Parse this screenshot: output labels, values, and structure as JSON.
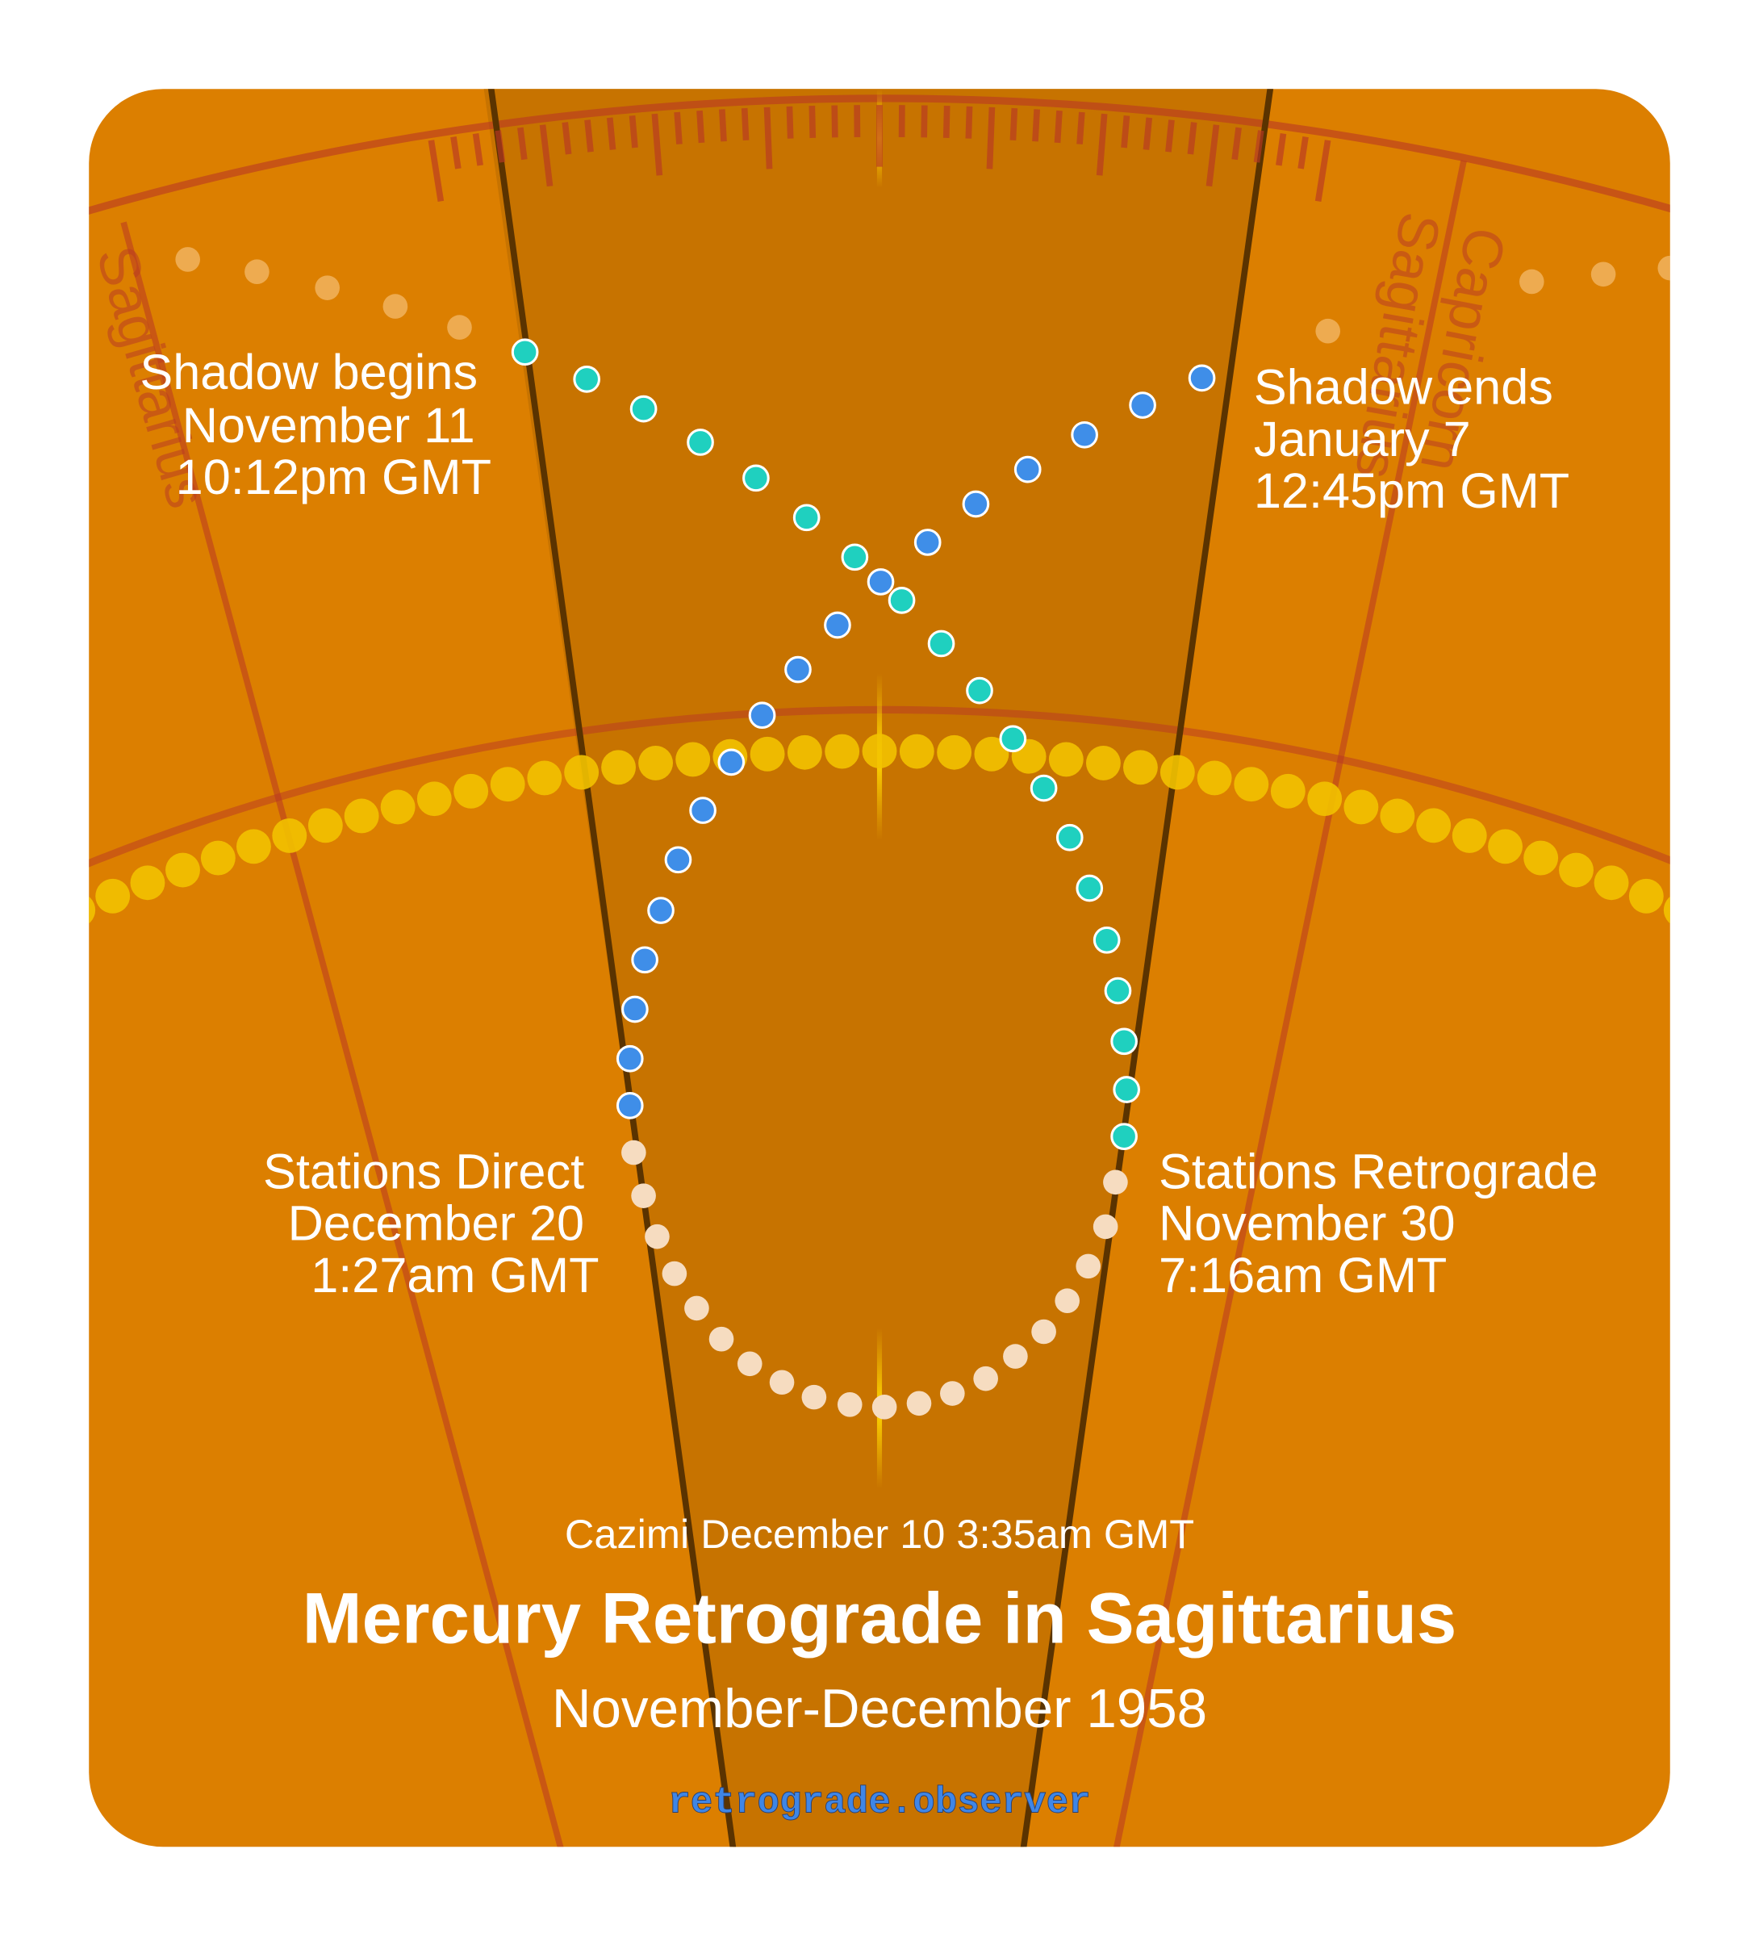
{
  "zodiac_labels": [
    "Sagittarius",
    "Capricorn",
    "Sagittarius"
  ],
  "annotations": {
    "shadow_begins": [
      "Shadow begins",
      "November 11",
      "10:12pm GMT"
    ],
    "shadow_ends": [
      "Shadow ends",
      "January 7",
      "12:45pm GMT"
    ],
    "stations_direct": [
      "Stations Direct",
      "December 20",
      "1:27am GMT"
    ],
    "stations_retrograde": [
      "Stations Retrograde",
      "November 30",
      "7:16am GMT"
    ],
    "cazimi": "Cazimi December 10 3:35am GMT"
  },
  "title": "Mercury Retrograde in Sagittarius",
  "subtitle": "November-December 1958",
  "footer": "retrograde.observer"
}
